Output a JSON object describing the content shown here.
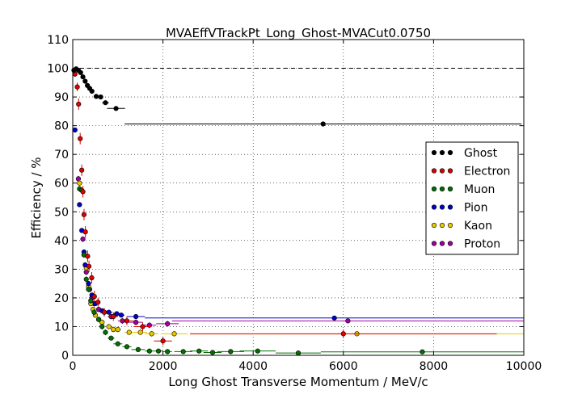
{
  "chart_data": {
    "type": "scatter",
    "title": "MVAEffVTrackPt_Long_Ghost-MVACut0.0750",
    "xlabel": "Long Ghost Transverse Momentum / MeV/c",
    "ylabel": "Efficiency / %",
    "xlim": [
      0,
      10000
    ],
    "ylim": [
      0,
      110
    ],
    "xticks": [
      0,
      2000,
      4000,
      6000,
      8000,
      10000
    ],
    "xtick_labels": [
      "0",
      "2000",
      "4000",
      "6000",
      "8000",
      "10000"
    ],
    "yticks": [
      0,
      10,
      20,
      30,
      40,
      50,
      60,
      70,
      80,
      90,
      100,
      110
    ],
    "ytick_labels": [
      "0",
      "10",
      "20",
      "30",
      "40",
      "50",
      "60",
      "70",
      "80",
      "90",
      "100",
      "110"
    ],
    "grid": true,
    "reference_line": 100,
    "legend_position": "right",
    "series": [
      {
        "name": "Ghost",
        "color": "#000000",
        "points": [
          {
            "x": 25,
            "y": 99.3,
            "xerr": 25,
            "yerr": 0.5
          },
          {
            "x": 75,
            "y": 99.8,
            "xerr": 25,
            "yerr": 0.4
          },
          {
            "x": 125,
            "y": 99.3,
            "xerr": 25,
            "yerr": 0.4
          },
          {
            "x": 175,
            "y": 98.5,
            "xerr": 25,
            "yerr": 0.4
          },
          {
            "x": 225,
            "y": 97.0,
            "xerr": 25,
            "yerr": 0.4
          },
          {
            "x": 275,
            "y": 95.5,
            "xerr": 25,
            "yerr": 0.4
          },
          {
            "x": 325,
            "y": 94.0,
            "xerr": 25,
            "yerr": 0.5
          },
          {
            "x": 375,
            "y": 93.0,
            "xerr": 25,
            "yerr": 0.5
          },
          {
            "x": 425,
            "y": 92.0,
            "xerr": 25,
            "yerr": 0.5
          },
          {
            "x": 520,
            "y": 90.2,
            "xerr": 50,
            "yerr": 0.5
          },
          {
            "x": 620,
            "y": 90.0,
            "xerr": 50,
            "yerr": 0.6
          },
          {
            "x": 725,
            "y": 88.0,
            "xerr": 75,
            "yerr": 0.7
          },
          {
            "x": 960,
            "y": 86.0,
            "xerr": 200,
            "yerr": 0.8
          },
          {
            "x": 5550,
            "y": 80.6,
            "xerr": 4400,
            "yerr": 0.6
          }
        ]
      },
      {
        "name": "Electron",
        "color": "#e00000",
        "points": [
          {
            "x": 50,
            "y": 98.0,
            "xerr": 25,
            "yerr": 1.0
          },
          {
            "x": 100,
            "y": 93.5,
            "xerr": 25,
            "yerr": 1.5
          },
          {
            "x": 130,
            "y": 87.5,
            "xerr": 25,
            "yerr": 2.0
          },
          {
            "x": 165,
            "y": 75.5,
            "xerr": 25,
            "yerr": 2.0
          },
          {
            "x": 200,
            "y": 64.5,
            "xerr": 25,
            "yerr": 2.0
          },
          {
            "x": 225,
            "y": 57.0,
            "xerr": 25,
            "yerr": 2.0
          },
          {
            "x": 250,
            "y": 49.0,
            "xerr": 25,
            "yerr": 2.0
          },
          {
            "x": 280,
            "y": 43.0,
            "xerr": 25,
            "yerr": 2.0
          },
          {
            "x": 330,
            "y": 34.5,
            "xerr": 25,
            "yerr": 2.0
          },
          {
            "x": 360,
            "y": 31.0,
            "xerr": 25,
            "yerr": 2.0
          },
          {
            "x": 420,
            "y": 27.0,
            "xerr": 25,
            "yerr": 2.0
          },
          {
            "x": 480,
            "y": 20.5,
            "xerr": 25,
            "yerr": 2.0
          },
          {
            "x": 560,
            "y": 18.5,
            "xerr": 50,
            "yerr": 1.5
          },
          {
            "x": 700,
            "y": 15.0,
            "xerr": 60,
            "yerr": 1.5
          },
          {
            "x": 900,
            "y": 13.5,
            "xerr": 100,
            "yerr": 1.5
          },
          {
            "x": 1200,
            "y": 12.0,
            "xerr": 150,
            "yerr": 1.5
          },
          {
            "x": 1550,
            "y": 10.0,
            "xerr": 200,
            "yerr": 1.5
          },
          {
            "x": 2000,
            "y": 5.0,
            "xerr": 200,
            "yerr": 1.5
          },
          {
            "x": 6000,
            "y": 7.5,
            "xerr": 3400,
            "yerr": 1.5
          }
        ]
      },
      {
        "name": "Muon",
        "color": "#007000",
        "points": [
          {
            "x": 150,
            "y": 58.0,
            "xerr": 25,
            "yerr": 1.0
          },
          {
            "x": 200,
            "y": 57.5,
            "xerr": 25,
            "yerr": 1.0
          },
          {
            "x": 250,
            "y": 35.0,
            "xerr": 25,
            "yerr": 1.0
          },
          {
            "x": 300,
            "y": 26.5,
            "xerr": 25,
            "yerr": 1.0
          },
          {
            "x": 350,
            "y": 23.0,
            "xerr": 25,
            "yerr": 1.0
          },
          {
            "x": 400,
            "y": 19.0,
            "xerr": 25,
            "yerr": 1.0
          },
          {
            "x": 475,
            "y": 15.0,
            "xerr": 50,
            "yerr": 1.0
          },
          {
            "x": 575,
            "y": 12.5,
            "xerr": 50,
            "yerr": 1.0
          },
          {
            "x": 650,
            "y": 10.0,
            "xerr": 50,
            "yerr": 1.0
          },
          {
            "x": 725,
            "y": 8.0,
            "xerr": 50,
            "yerr": 1.0
          },
          {
            "x": 850,
            "y": 6.0,
            "xerr": 75,
            "yerr": 0.8
          },
          {
            "x": 1000,
            "y": 4.0,
            "xerr": 100,
            "yerr": 0.8
          },
          {
            "x": 1200,
            "y": 3.0,
            "xerr": 100,
            "yerr": 0.8
          },
          {
            "x": 1450,
            "y": 2.0,
            "xerr": 150,
            "yerr": 0.8
          },
          {
            "x": 1700,
            "y": 1.5,
            "xerr": 100,
            "yerr": 0.8
          },
          {
            "x": 1900,
            "y": 1.5,
            "xerr": 100,
            "yerr": 0.8
          },
          {
            "x": 2100,
            "y": 1.3,
            "xerr": 100,
            "yerr": 0.8
          },
          {
            "x": 2450,
            "y": 1.3,
            "xerr": 200,
            "yerr": 0.8
          },
          {
            "x": 2800,
            "y": 1.5,
            "xerr": 200,
            "yerr": 0.8
          },
          {
            "x": 3100,
            "y": 1.0,
            "xerr": 200,
            "yerr": 0.8
          },
          {
            "x": 3500,
            "y": 1.3,
            "xerr": 300,
            "yerr": 0.8
          },
          {
            "x": 4100,
            "y": 1.5,
            "xerr": 400,
            "yerr": 0.8
          },
          {
            "x": 5000,
            "y": 0.8,
            "xerr": 500,
            "yerr": 0.6
          },
          {
            "x": 7750,
            "y": 1.2,
            "xerr": 2250,
            "yerr": 0.6
          }
        ]
      },
      {
        "name": "Pion",
        "color": "#0000d0",
        "points": [
          {
            "x": 50,
            "y": 78.5,
            "xerr": 25,
            "yerr": 0.8
          },
          {
            "x": 150,
            "y": 52.5,
            "xerr": 25,
            "yerr": 0.8
          },
          {
            "x": 200,
            "y": 43.5,
            "xerr": 25,
            "yerr": 0.8
          },
          {
            "x": 250,
            "y": 36.0,
            "xerr": 25,
            "yerr": 0.8
          },
          {
            "x": 275,
            "y": 31.5,
            "xerr": 25,
            "yerr": 0.8
          },
          {
            "x": 350,
            "y": 25.0,
            "xerr": 25,
            "yerr": 0.8
          },
          {
            "x": 425,
            "y": 21.0,
            "xerr": 25,
            "yerr": 0.8
          },
          {
            "x": 500,
            "y": 18.0,
            "xerr": 50,
            "yerr": 0.8
          },
          {
            "x": 650,
            "y": 15.5,
            "xerr": 50,
            "yerr": 0.8
          },
          {
            "x": 800,
            "y": 15.0,
            "xerr": 75,
            "yerr": 0.8
          },
          {
            "x": 975,
            "y": 14.5,
            "xerr": 75,
            "yerr": 0.8
          },
          {
            "x": 1075,
            "y": 14.0,
            "xerr": 75,
            "yerr": 0.8
          },
          {
            "x": 1400,
            "y": 13.5,
            "xerr": 200,
            "yerr": 0.8
          },
          {
            "x": 5800,
            "y": 13.0,
            "xerr": 4200,
            "yerr": 0.6
          }
        ]
      },
      {
        "name": "Kaon",
        "color": "#e8c800",
        "points": [
          {
            "x": 150,
            "y": 60.0,
            "xerr": 25,
            "yerr": 1.0
          },
          {
            "x": 250,
            "y": 35.0,
            "xerr": 25,
            "yerr": 1.0
          },
          {
            "x": 300,
            "y": 30.5,
            "xerr": 25,
            "yerr": 1.0
          },
          {
            "x": 350,
            "y": 24.0,
            "xerr": 25,
            "yerr": 1.0
          },
          {
            "x": 400,
            "y": 18.0,
            "xerr": 25,
            "yerr": 1.0
          },
          {
            "x": 450,
            "y": 16.0,
            "xerr": 25,
            "yerr": 1.0
          },
          {
            "x": 500,
            "y": 14.0,
            "xerr": 25,
            "yerr": 1.0
          },
          {
            "x": 575,
            "y": 12.5,
            "xerr": 50,
            "yerr": 1.0
          },
          {
            "x": 650,
            "y": 11.5,
            "xerr": 50,
            "yerr": 1.0
          },
          {
            "x": 800,
            "y": 10.0,
            "xerr": 50,
            "yerr": 1.0
          },
          {
            "x": 900,
            "y": 9.0,
            "xerr": 50,
            "yerr": 1.0
          },
          {
            "x": 1000,
            "y": 9.0,
            "xerr": 75,
            "yerr": 1.0
          },
          {
            "x": 1250,
            "y": 8.0,
            "xerr": 100,
            "yerr": 1.0
          },
          {
            "x": 1500,
            "y": 8.0,
            "xerr": 150,
            "yerr": 1.0
          },
          {
            "x": 1750,
            "y": 7.5,
            "xerr": 150,
            "yerr": 1.0
          },
          {
            "x": 2250,
            "y": 7.5,
            "xerr": 300,
            "yerr": 1.0
          },
          {
            "x": 6300,
            "y": 7.5,
            "xerr": 3700,
            "yerr": 0.8
          }
        ]
      },
      {
        "name": "Proton",
        "color": "#a000a0",
        "points": [
          {
            "x": 125,
            "y": 61.5,
            "xerr": 25,
            "yerr": 1.0
          },
          {
            "x": 225,
            "y": 40.5,
            "xerr": 25,
            "yerr": 1.0
          },
          {
            "x": 300,
            "y": 29.0,
            "xerr": 25,
            "yerr": 1.0
          },
          {
            "x": 375,
            "y": 23.0,
            "xerr": 25,
            "yerr": 1.0
          },
          {
            "x": 425,
            "y": 20.0,
            "xerr": 25,
            "yerr": 1.0
          },
          {
            "x": 475,
            "y": 18.0,
            "xerr": 25,
            "yerr": 1.0
          },
          {
            "x": 575,
            "y": 16.0,
            "xerr": 50,
            "yerr": 1.0
          },
          {
            "x": 700,
            "y": 15.0,
            "xerr": 50,
            "yerr": 1.0
          },
          {
            "x": 850,
            "y": 13.5,
            "xerr": 75,
            "yerr": 1.0
          },
          {
            "x": 1100,
            "y": 12.0,
            "xerr": 100,
            "yerr": 1.0
          },
          {
            "x": 1400,
            "y": 11.5,
            "xerr": 150,
            "yerr": 1.0
          },
          {
            "x": 1700,
            "y": 10.5,
            "xerr": 150,
            "yerr": 1.0
          },
          {
            "x": 2100,
            "y": 11.0,
            "xerr": 250,
            "yerr": 1.0
          },
          {
            "x": 6100,
            "y": 12.0,
            "xerr": 3900,
            "yerr": 0.8
          }
        ]
      }
    ]
  }
}
